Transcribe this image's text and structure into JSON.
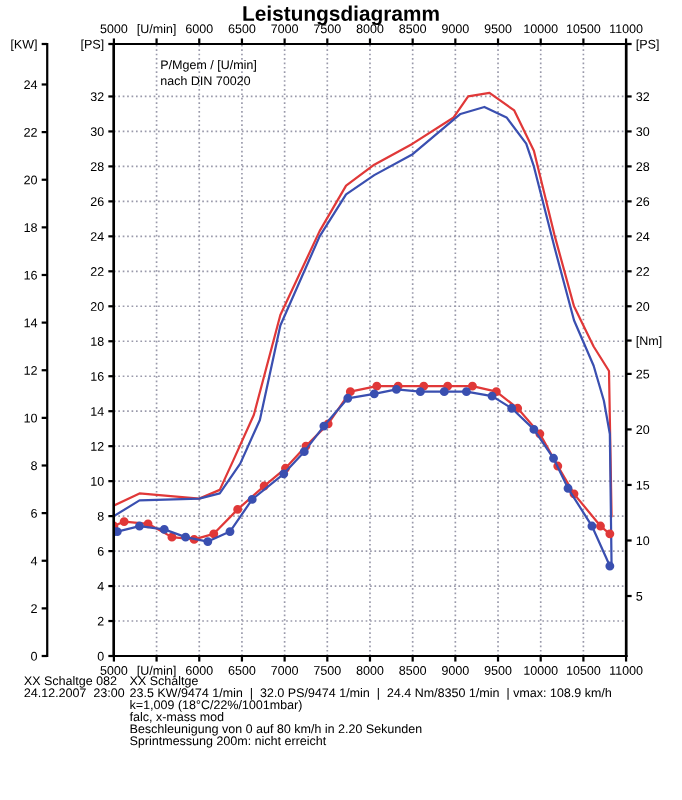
{
  "chart_data": [
    {
      "type": "line",
      "title": "Leistungsdiagramm",
      "annotations": [
        "P/Mgem / [U/min]",
        "nach DIN 70020",
        "XX Schaltge 082",
        "24.12.2007  23:00",
        "XX Schaltge",
        "23.5 KW/9474 1/min  |  32.0 PS/9474 1/min  |  24.4 Nm/8350 1/min  | vmax: 108.9 km/h",
        "k=1,009 (18°C/22%/1001mbar)",
        "falc, x-mass mod",
        "Beschleunigung von 0 auf 80 km/h in 2.20 Sekunden",
        "Sprintmessung 200m: nicht erreicht"
      ],
      "xlim": [
        5000,
        11000
      ],
      "xticks": [
        5000,
        {
          "value": 5500,
          "label": "[U/min]"
        },
        6000,
        6500,
        7000,
        7500,
        8000,
        8500,
        9000,
        9500,
        10000,
        10500,
        11000
      ],
      "x2lim": [
        5000,
        11000
      ],
      "x2ticks": [
        5000,
        {
          "value": 5500,
          "label": "[U/min]"
        },
        6000,
        6500,
        7000,
        7500,
        8000,
        8500,
        9000,
        9500,
        10000,
        10500,
        11000
      ],
      "ylim": [
        0,
        35
      ],
      "yticks": [
        0,
        2,
        4,
        6,
        8,
        10,
        12,
        14,
        16,
        18,
        20,
        22,
        24,
        26,
        28,
        30,
        32,
        {
          "value": 35,
          "label": "[PS]"
        }
      ],
      "y2lim": [
        0,
        35
      ],
      "y2ticks": [
        20,
        22,
        24,
        26,
        28,
        30,
        32,
        {
          "value": 35,
          "label": "[PS]"
        }
      ],
      "y3lim": [
        -0.4,
        54.7
      ],
      "y3ticks": [
        5,
        10,
        15,
        20,
        25,
        {
          "value": 28,
          "label": "[Nm]"
        }
      ],
      "grid": true,
      "series": [
        {
          "color": "#e03838",
          "axis": "y",
          "marker": "none",
          "x": [
            5000,
            5300,
            6000,
            6240,
            6400,
            6640,
            6950,
            7410,
            7720,
            8050,
            8500,
            8980,
            9150,
            9400,
            9690,
            9920,
            10160,
            10390,
            10620,
            10800,
            10830
          ],
          "values": [
            8.6,
            9.3,
            9.0,
            9.5,
            11.2,
            13.8,
            19.5,
            24.3,
            26.9,
            28.1,
            29.3,
            30.8,
            32.0,
            32.2,
            31.2,
            28.9,
            24.1,
            20.0,
            17.7,
            16.3,
            8.0
          ]
        },
        {
          "color": "#3a4fb0",
          "axis": "y",
          "marker": "none",
          "x": [
            5000,
            5300,
            6000,
            6240,
            6480,
            6710,
            6950,
            7410,
            7720,
            8050,
            8500,
            9060,
            9340,
            9600,
            9830,
            9920,
            10160,
            10390,
            10620,
            10740,
            10810,
            10830
          ],
          "values": [
            8.0,
            8.9,
            9.0,
            9.3,
            11.0,
            13.5,
            18.9,
            24.0,
            26.4,
            27.5,
            28.7,
            31.0,
            31.4,
            30.8,
            29.3,
            28.0,
            23.4,
            19.2,
            16.6,
            14.6,
            12.7,
            5.2
          ]
        },
        {
          "color": "#e03838",
          "axis": "y3",
          "marker": "circle",
          "x": [
            5000,
            5120,
            5400,
            5680,
            5940,
            6170,
            6450,
            6760,
            7010,
            7250,
            7510,
            7770,
            8080,
            8330,
            8630,
            8910,
            9200,
            9480,
            9730,
            9990,
            10200,
            10390,
            10700,
            10810
          ],
          "values": [
            11.3,
            11.7,
            11.5,
            10.3,
            10.1,
            10.6,
            12.8,
            14.9,
            16.5,
            18.5,
            20.5,
            23.4,
            23.9,
            23.9,
            23.9,
            23.9,
            23.9,
            23.4,
            21.9,
            19.6,
            16.7,
            14.2,
            11.3,
            10.6
          ]
        },
        {
          "color": "#3a4fb0",
          "axis": "y3",
          "marker": "circle",
          "x": [
            5000,
            5040,
            5300,
            5590,
            5840,
            6100,
            6360,
            6620,
            6990,
            7230,
            7460,
            7740,
            8050,
            8310,
            8590,
            8870,
            9130,
            9430,
            9660,
            9920,
            10150,
            10320,
            10600,
            10810
          ],
          "values": [
            10.8,
            10.8,
            11.3,
            11.0,
            10.3,
            9.9,
            10.8,
            13.7,
            16.0,
            18.0,
            20.3,
            22.8,
            23.2,
            23.6,
            23.4,
            23.4,
            23.4,
            23.0,
            21.9,
            20.0,
            17.4,
            14.7,
            11.3,
            7.7
          ]
        }
      ]
    },
    {
      "type": "line",
      "tick_labels": "y",
      "xlim": [
        5000,
        11000
      ],
      "ylim": [
        0,
        25.7
      ],
      "yticks": [
        0,
        2,
        4,
        6,
        8,
        10,
        12,
        14,
        16,
        18,
        20,
        22,
        24,
        {
          "value": 25.7,
          "label": "[KW]"
        }
      ]
    }
  ]
}
